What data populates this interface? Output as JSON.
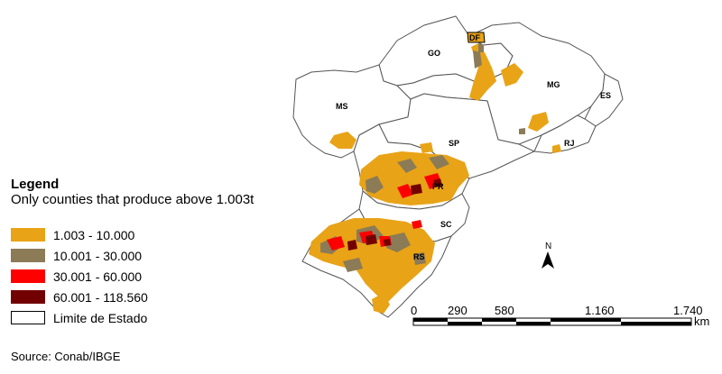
{
  "legend": {
    "title": "Legend",
    "subtitle": "Only counties that produce above 1.003t",
    "classes": [
      {
        "label": "1.003 - 10.000",
        "color": "#E8A317"
      },
      {
        "label": "10.001 - 30.000",
        "color": "#8B7B57"
      },
      {
        "label": "30.001 - 60.000",
        "color": "#FF0000"
      },
      {
        "label": "60.001 - 118.560",
        "color": "#730000"
      }
    ],
    "boundary_label": "Limite de Estado"
  },
  "states": {
    "go": "GO",
    "df": "DF",
    "mg": "MG",
    "es": "ES",
    "ms": "MS",
    "sp": "SP",
    "rj": "RJ",
    "pr": "PR",
    "sc": "SC",
    "rs": "RS"
  },
  "north_arrow": {
    "letter": "N"
  },
  "scale_bar": {
    "ticks": [
      "0",
      "290",
      "580",
      "1.160",
      "1.740"
    ],
    "unit": "km"
  },
  "source": "Source: Conab/IBGE"
}
